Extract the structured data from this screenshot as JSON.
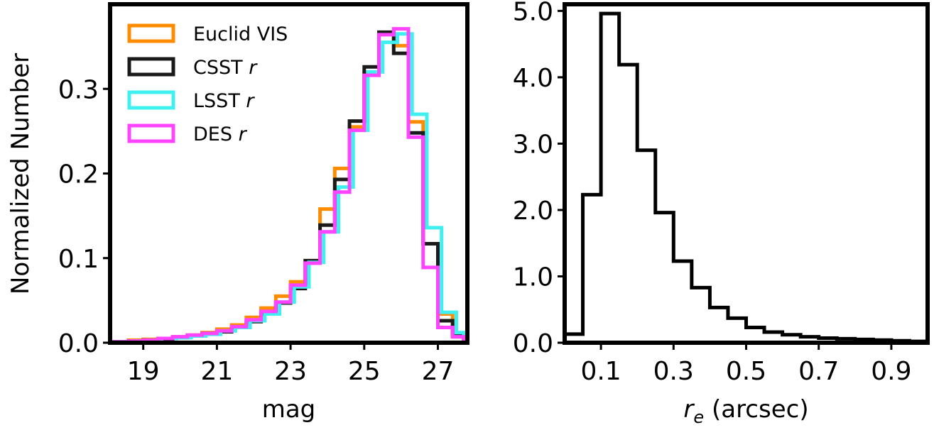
{
  "chart_data": [
    {
      "type": "histogram",
      "xlabel": "mag",
      "ylabel": "Normalized Number",
      "xlim": [
        18.1,
        27.8
      ],
      "ylim": [
        0,
        0.4
      ],
      "xticks": [
        "19",
        "21",
        "23",
        "25",
        "27"
      ],
      "xtick_values": [
        19,
        21,
        23,
        25,
        27
      ],
      "yticks": [
        "0.0",
        "0.1",
        "0.2",
        "0.3"
      ],
      "ytick_values": [
        0,
        0.1,
        0.2,
        0.3
      ],
      "legend": "top-left",
      "series": [
        {
          "name": "Euclid VIS",
          "label_main": "Euclid VIS",
          "label_italic": "",
          "color": "#ff8c00",
          "bins": [
            18.1,
            18.6,
            19.0,
            19.4,
            19.8,
            20.2,
            20.6,
            21.0,
            21.4,
            21.8,
            22.2,
            22.6,
            23.0,
            23.4,
            23.8,
            24.2,
            24.6,
            25.0,
            25.4,
            25.8,
            26.2,
            26.6,
            27.0,
            27.4,
            27.7
          ],
          "values": [
            0.001,
            0.003,
            0.004,
            0.005,
            0.007,
            0.009,
            0.012,
            0.016,
            0.021,
            0.03,
            0.041,
            0.055,
            0.072,
            0.097,
            0.158,
            0.206,
            0.255,
            0.318,
            0.366,
            0.351,
            0.261,
            0.117,
            0.034,
            0.007
          ]
        },
        {
          "name": "CSST r",
          "label_main": "CSST",
          "label_italic": "r",
          "color": "#1a1a1a",
          "bins": [
            18.1,
            18.6,
            19.0,
            19.4,
            19.8,
            20.2,
            20.6,
            21.0,
            21.4,
            21.8,
            22.2,
            22.6,
            23.0,
            23.4,
            23.8,
            24.2,
            24.6,
            25.0,
            25.4,
            25.8,
            26.2,
            26.6,
            27.0,
            27.4,
            27.7
          ],
          "values": [
            0.001,
            0.002,
            0.003,
            0.004,
            0.006,
            0.008,
            0.011,
            0.013,
            0.018,
            0.025,
            0.034,
            0.047,
            0.064,
            0.097,
            0.139,
            0.193,
            0.262,
            0.326,
            0.367,
            0.342,
            0.248,
            0.117,
            0.026,
            0.008
          ]
        },
        {
          "name": "LSST r",
          "label_main": "LSST",
          "label_italic": "r",
          "color": "#40f0f0",
          "bins": [
            18.1,
            18.7,
            19.1,
            19.5,
            19.9,
            20.3,
            20.7,
            21.1,
            21.5,
            21.9,
            22.3,
            22.7,
            23.1,
            23.5,
            23.9,
            24.3,
            24.7,
            25.1,
            25.5,
            25.9,
            26.3,
            26.7,
            27.1,
            27.5,
            27.7
          ],
          "values": [
            0.001,
            0.002,
            0.003,
            0.005,
            0.006,
            0.008,
            0.01,
            0.014,
            0.018,
            0.026,
            0.034,
            0.048,
            0.066,
            0.095,
            0.131,
            0.184,
            0.251,
            0.32,
            0.355,
            0.365,
            0.27,
            0.136,
            0.036,
            0.012
          ]
        },
        {
          "name": "DES r",
          "label_main": "DES",
          "label_italic": "r",
          "color": "#ff44ff",
          "bins": [
            18.1,
            18.6,
            19.0,
            19.4,
            19.8,
            20.2,
            20.6,
            21.0,
            21.4,
            21.8,
            22.2,
            22.6,
            23.0,
            23.4,
            23.8,
            24.2,
            24.6,
            25.0,
            25.4,
            25.8,
            26.2,
            26.6,
            27.0,
            27.4,
            27.7
          ],
          "values": [
            0.001,
            0.002,
            0.003,
            0.005,
            0.007,
            0.009,
            0.011,
            0.014,
            0.019,
            0.027,
            0.037,
            0.048,
            0.068,
            0.094,
            0.131,
            0.178,
            0.251,
            0.316,
            0.364,
            0.371,
            0.243,
            0.089,
            0.018,
            0.007
          ]
        }
      ]
    },
    {
      "type": "histogram",
      "xlabel_italic": "r",
      "xlabel_sub": "e",
      "xlabel_rest": " (arcsec)",
      "ylabel": "",
      "xlim": [
        0,
        1.0
      ],
      "ylim": [
        0,
        5.1
      ],
      "xticks": [
        "0.1",
        "0.3",
        "0.5",
        "0.7",
        "0.9"
      ],
      "xtick_values": [
        0.1,
        0.3,
        0.5,
        0.7,
        0.9
      ],
      "yticks": [
        "0.0",
        "1.0",
        "2.0",
        "3.0",
        "4.0",
        "5.0"
      ],
      "ytick_values": [
        0,
        1,
        2,
        3,
        4,
        5
      ],
      "series": [
        {
          "color": "#000000",
          "bins": [
            0.0,
            0.05,
            0.1,
            0.15,
            0.2,
            0.25,
            0.3,
            0.35,
            0.4,
            0.45,
            0.5,
            0.55,
            0.6,
            0.65,
            0.7,
            0.75,
            0.8,
            0.85,
            0.9,
            0.95,
            1.0
          ],
          "values": [
            0.13,
            2.23,
            4.96,
            4.19,
            2.9,
            1.96,
            1.23,
            0.83,
            0.53,
            0.37,
            0.23,
            0.16,
            0.12,
            0.09,
            0.07,
            0.06,
            0.05,
            0.04,
            0.03,
            0.02
          ]
        }
      ]
    }
  ]
}
